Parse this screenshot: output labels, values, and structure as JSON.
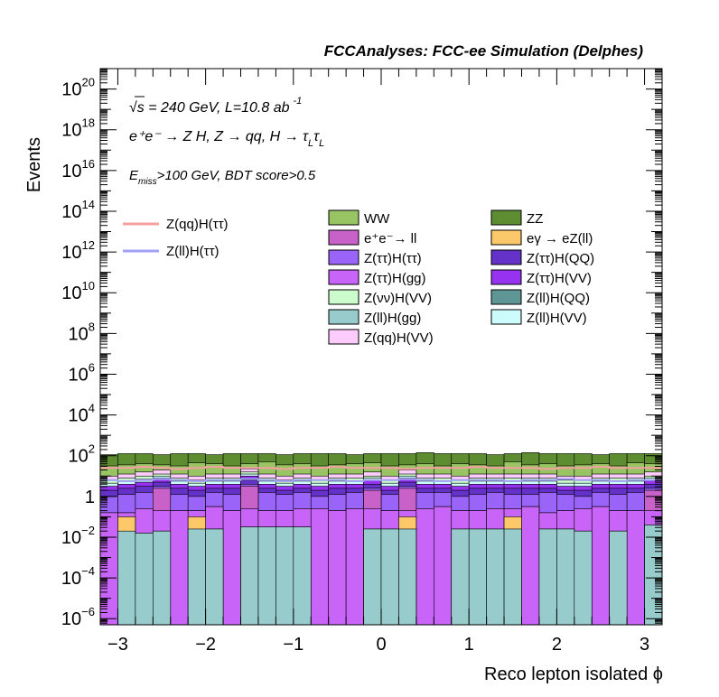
{
  "chart_data": {
    "type": "area",
    "title": "FCCAnalyses: FCC-ee Simulation (Delphes)",
    "xlabel": "Reco lepton isolated ϕ",
    "ylabel": "Events",
    "xlim": [
      -3.2,
      3.2
    ],
    "ylim_log10": [
      -6.3,
      21
    ],
    "log_y": true,
    "x_ticks": [
      -3,
      -2,
      -1,
      0,
      1,
      2,
      3
    ],
    "x_tick_labels": [
      "−3",
      "−2",
      "−1",
      "0",
      "1",
      "2",
      "3"
    ],
    "y_ticks_log10": [
      -6,
      -4,
      -2,
      0,
      2,
      4,
      6,
      8,
      10,
      12,
      14,
      16,
      18,
      20
    ],
    "y_tick_labels": [
      {
        "base": "10",
        "exp": "−6"
      },
      {
        "base": "10",
        "exp": "−4"
      },
      {
        "base": "10",
        "exp": "−2"
      },
      {
        "base": "1",
        "exp": ""
      },
      {
        "base": "10",
        "exp": "2"
      },
      {
        "base": "10",
        "exp": "4"
      },
      {
        "base": "10",
        "exp": "6"
      },
      {
        "base": "10",
        "exp": "8"
      },
      {
        "base": "10",
        "exp": "10"
      },
      {
        "base": "10",
        "exp": "12"
      },
      {
        "base": "10",
        "exp": "14"
      },
      {
        "base": "10",
        "exp": "16"
      },
      {
        "base": "10",
        "exp": "18"
      },
      {
        "base": "10",
        "exp": "20"
      }
    ],
    "annotations": {
      "sqrt_s": "√s = 240 GeV, L=10.8 ab",
      "lumi_exp": "-1",
      "process": "e⁺e⁻ → Z H, Z → qq, H → τ",
      "process_sub1": "L",
      "process_tau2": "τ",
      "process_sub2": "L",
      "cut_E": "E",
      "cut_sub": "miss",
      "cut_rest": ">100 GeV, BDT score>0.5"
    },
    "signal_legend": [
      {
        "name": "Z(qq)H(ττ)",
        "color": "#f4a0a0"
      },
      {
        "name": "Z(ll)H(ττ)",
        "color": "#a0a0f4"
      }
    ],
    "bkg_legend": [
      {
        "name": "WW",
        "color": "#98c464"
      },
      {
        "name": "ZZ",
        "color": "#5e8c30"
      },
      {
        "name": "e⁺e⁻→ ll",
        "color": "#c862c8"
      },
      {
        "name": "eγ → eZ(ll)",
        "color": "#fcc86a"
      },
      {
        "name": "Z(ττ)H(ττ)",
        "color": "#9a64f8"
      },
      {
        "name": "Z(ττ)H(QQ)",
        "color": "#6432c8"
      },
      {
        "name": "Z(ττ)H(gg)",
        "color": "#c864f8"
      },
      {
        "name": "Z(ττ)H(VV)",
        "color": "#9632f0"
      },
      {
        "name": "Z(νν)H(VV)",
        "color": "#ccfccc"
      },
      {
        "name": "Z(ll)H(QQ)",
        "color": "#5e9696"
      },
      {
        "name": "Z(ll)H(gg)",
        "color": "#98cccc"
      },
      {
        "name": "Z(ll)H(VV)",
        "color": "#ccfcfc"
      },
      {
        "name": "Z(qq)H(VV)",
        "color": "#fcccfc"
      }
    ],
    "n_bins": 32,
    "stack_colors": [
      "#98cccc",
      "#fcc86a",
      "#c864f8",
      "#c862c8",
      "#9a64f8",
      "#6432c8",
      "#9632f0",
      "#ccfcfc",
      "#ccfccc",
      "#fcccfc",
      "#98c464",
      "#5e8c30"
    ],
    "stack_tops_log10": {
      "Z(ll)H(gg)": [
        -6.3,
        -1.7,
        -1.8,
        -1.7,
        -6.3,
        -1.6,
        -1.6,
        -6.3,
        -1.5,
        -1.5,
        -1.5,
        -1.5,
        -6.3,
        -6.3,
        -6.3,
        -1.6,
        -1.6,
        -1.6,
        -6.3,
        -6.3,
        -1.6,
        -1.6,
        -1.6,
        -1.6,
        -6.3,
        -1.6,
        -1.6,
        -1.7,
        -6.3,
        -1.7,
        -6.3,
        -1.4
      ],
      "eγ → eZ(ll)": [
        -6.3,
        -1.0,
        -1.8,
        -1.7,
        -6.3,
        -1.0,
        -1.6,
        -6.3,
        -1.5,
        -1.5,
        -1.5,
        -1.5,
        -6.3,
        -6.3,
        -6.3,
        -1.6,
        -1.6,
        -1.0,
        -6.3,
        -6.3,
        -1.6,
        -1.6,
        -1.6,
        -1.0,
        -6.3,
        -1.6,
        -1.6,
        -1.7,
        -6.3,
        -1.7,
        -6.3,
        -1.4
      ],
      "Z(ττ)H(gg)": [
        -0.8,
        -0.8,
        -0.6,
        -0.7,
        -0.7,
        -0.7,
        -0.5,
        -0.7,
        -0.6,
        -0.7,
        -0.7,
        -0.6,
        -0.6,
        -0.7,
        -0.6,
        -0.6,
        -0.7,
        -0.7,
        -0.6,
        -0.5,
        -0.7,
        -0.7,
        -0.6,
        -0.6,
        -0.5,
        -0.8,
        -0.7,
        -0.6,
        -0.5,
        -0.7,
        -0.7,
        -0.7
      ],
      "e⁺e⁻→ ll": [
        -0.8,
        -0.8,
        -0.6,
        0.4,
        -0.7,
        -0.7,
        -0.5,
        -0.7,
        0.5,
        -0.7,
        -0.7,
        -0.6,
        -0.6,
        -0.7,
        -0.6,
        0.3,
        -0.7,
        0.4,
        -0.6,
        -0.5,
        -0.7,
        -0.7,
        -0.6,
        -0.6,
        -0.5,
        -0.8,
        -0.7,
        -0.6,
        -0.5,
        -0.7,
        -0.7,
        0.3
      ],
      "Z(ττ)H(ττ)": [
        0.0,
        0.1,
        0.2,
        0.5,
        0.1,
        0.0,
        0.2,
        0.1,
        0.6,
        0.2,
        0.1,
        0.2,
        0.0,
        0.1,
        0.2,
        0.4,
        0.1,
        0.5,
        0.2,
        0.2,
        0.0,
        0.1,
        0.2,
        0.1,
        0.1,
        0.2,
        0.1,
        0.0,
        0.2,
        0.1,
        0.2,
        0.4
      ],
      "Z(ττ)H(QQ)": [
        0.3,
        0.4,
        0.5,
        0.7,
        0.4,
        0.3,
        0.4,
        0.4,
        0.8,
        0.4,
        0.3,
        0.4,
        0.3,
        0.4,
        0.4,
        0.6,
        0.3,
        0.7,
        0.4,
        0.4,
        0.3,
        0.4,
        0.4,
        0.4,
        0.4,
        0.4,
        0.3,
        0.3,
        0.4,
        0.4,
        0.4,
        0.6
      ],
      "Z(ττ)H(VV)": [
        0.5,
        0.6,
        0.7,
        0.9,
        0.6,
        0.5,
        0.6,
        0.6,
        1.0,
        0.6,
        0.5,
        0.6,
        0.5,
        0.6,
        0.6,
        0.8,
        0.5,
        0.9,
        0.6,
        0.6,
        0.5,
        0.6,
        0.6,
        0.6,
        0.6,
        0.6,
        0.5,
        0.5,
        0.6,
        0.6,
        0.6,
        0.8
      ],
      "Z(ll)H(VV)": [
        0.65,
        0.75,
        0.85,
        1.0,
        0.75,
        0.65,
        0.75,
        0.75,
        1.1,
        0.75,
        0.65,
        0.75,
        0.65,
        0.75,
        0.75,
        0.9,
        0.65,
        1.0,
        0.75,
        0.75,
        0.65,
        0.75,
        0.75,
        0.75,
        0.75,
        0.75,
        0.65,
        0.65,
        0.75,
        0.75,
        0.75,
        0.9
      ],
      "Z(νν)H(VV)": [
        0.8,
        0.9,
        1.0,
        1.1,
        0.9,
        0.8,
        0.9,
        0.9,
        1.2,
        0.9,
        0.8,
        0.9,
        0.8,
        0.9,
        0.9,
        1.0,
        0.8,
        1.1,
        0.9,
        0.9,
        0.8,
        0.9,
        0.9,
        0.9,
        0.9,
        0.9,
        0.8,
        0.8,
        0.9,
        0.9,
        0.9,
        1.0
      ],
      "Z(qq)H(VV)": [
        1.0,
        1.1,
        1.2,
        1.3,
        1.1,
        1.0,
        1.1,
        1.1,
        1.35,
        1.1,
        1.0,
        1.1,
        1.0,
        1.1,
        1.1,
        1.2,
        1.0,
        1.3,
        1.1,
        1.1,
        1.0,
        1.1,
        1.1,
        1.1,
        1.1,
        1.1,
        1.0,
        1.0,
        1.1,
        1.1,
        1.1,
        1.2
      ],
      "WW": [
        1.5,
        1.55,
        1.6,
        1.55,
        1.5,
        1.65,
        1.6,
        1.5,
        1.6,
        1.7,
        1.55,
        1.6,
        1.5,
        1.55,
        1.6,
        1.65,
        1.5,
        1.55,
        1.6,
        1.5,
        1.6,
        1.55,
        1.5,
        1.7,
        1.55,
        1.6,
        1.5,
        1.55,
        1.6,
        1.5,
        1.65,
        1.6
      ],
      "ZZ": [
        2.05,
        2.1,
        2.1,
        2.05,
        2.1,
        2.1,
        2.05,
        2.1,
        2.1,
        2.1,
        2.05,
        2.1,
        2.1,
        2.1,
        2.05,
        2.1,
        2.1,
        2.1,
        2.15,
        2.1,
        2.1,
        2.1,
        2.05,
        2.1,
        2.15,
        2.1,
        2.1,
        2.1,
        2.05,
        2.1,
        2.1,
        2.1
      ]
    },
    "signal_lines_log10": {
      "Z(qq)H(ττ)": [
        1.4,
        1.4,
        1.45,
        1.4,
        1.35,
        1.4,
        1.45,
        1.4,
        1.4,
        1.4,
        1.35,
        1.4,
        1.4,
        1.45,
        1.4,
        1.4,
        1.4,
        1.35,
        1.4,
        1.4,
        1.4,
        1.45,
        1.4,
        1.4,
        1.4,
        1.35,
        1.4,
        1.4,
        1.45,
        1.4,
        1.4,
        1.4
      ],
      "Z(ll)H(ττ)": [
        0.8,
        0.75,
        0.8,
        0.85,
        0.8,
        0.75,
        0.8,
        0.8,
        0.85,
        0.8,
        0.75,
        0.8,
        0.8,
        0.8,
        0.75,
        0.8,
        0.8,
        0.85,
        0.8,
        0.75,
        0.8,
        0.8,
        0.8,
        0.75,
        0.8,
        0.8,
        0.85,
        0.8,
        0.8,
        0.75,
        0.8,
        0.8
      ]
    }
  }
}
